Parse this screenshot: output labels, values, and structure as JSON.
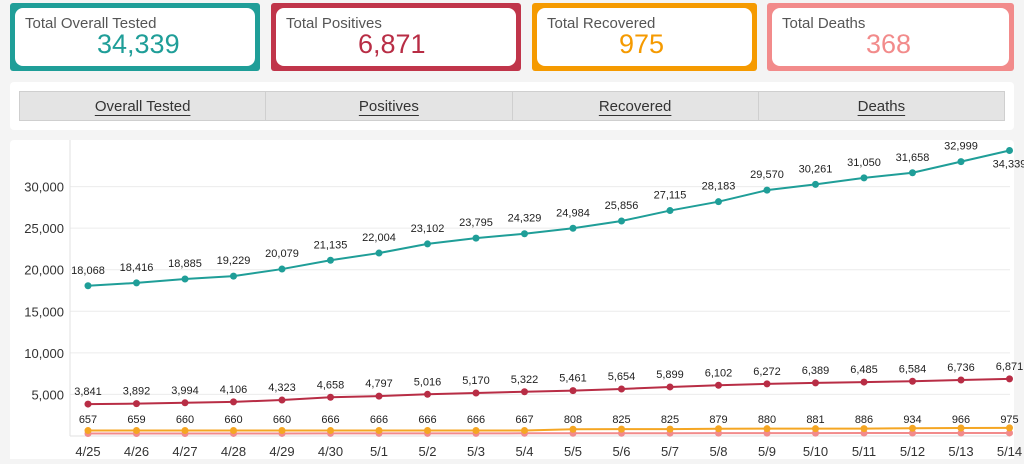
{
  "cards": [
    {
      "label": "Total Overall Tested",
      "value": "34,339",
      "color": "#1f9e98"
    },
    {
      "label": "Total Positives",
      "value": "6,871",
      "color": "#c0354a"
    },
    {
      "label": "Total Recovered",
      "value": "975",
      "color": "#f59a00"
    },
    {
      "label": "Total Deaths",
      "value": "368",
      "color": "#f28b8b"
    }
  ],
  "tabs": [
    "Overall Tested",
    "Positives",
    "Recovered",
    "Deaths"
  ],
  "chart_data": {
    "type": "line",
    "categories": [
      "4/25",
      "4/26",
      "4/27",
      "4/28",
      "4/29",
      "4/30",
      "5/1",
      "5/2",
      "5/3",
      "5/4",
      "5/5",
      "5/6",
      "5/7",
      "5/8",
      "5/9",
      "5/10",
      "5/11",
      "5/12",
      "5/13",
      "5/14"
    ],
    "ylim": [
      0,
      35000
    ],
    "yticks": [
      5000,
      10000,
      15000,
      20000,
      25000,
      30000
    ],
    "ytick_labels": [
      "5,000",
      "10,000",
      "15,000",
      "20,000",
      "25,000",
      "30,000"
    ],
    "grid": true,
    "series": [
      {
        "color": "#1f9e98",
        "values": [
          18068,
          18416,
          18885,
          19229,
          20079,
          21135,
          22004,
          23102,
          23795,
          24329,
          24984,
          25856,
          27115,
          28183,
          29570,
          30261,
          31050,
          31658,
          32999,
          34339
        ],
        "labels": [
          "18,068",
          "18,416",
          "18,885",
          "19,229",
          "20,079",
          "21,135",
          "22,004",
          "23,102",
          "23,795",
          "24,329",
          "24,984",
          "25,856",
          "27,115",
          "28,183",
          "29,570",
          "30,261",
          "31,050",
          "31,658",
          "32,999",
          "34,339"
        ]
      },
      {
        "color": "#b82d45",
        "values": [
          3841,
          3892,
          3994,
          4106,
          4323,
          4658,
          4797,
          5016,
          5170,
          5322,
          5461,
          5654,
          5899,
          6102,
          6272,
          6389,
          6485,
          6584,
          6736,
          6871
        ],
        "labels": [
          "3,841",
          "3,892",
          "3,994",
          "4,106",
          "4,323",
          "4,658",
          "4,797",
          "5,016",
          "5,170",
          "5,322",
          "5,461",
          "5,654",
          "5,899",
          "6,102",
          "6,272",
          "6,389",
          "6,485",
          "6,584",
          "6,736",
          "6,871"
        ]
      },
      {
        "color": "#f5a623",
        "values": [
          657,
          659,
          660,
          660,
          660,
          666,
          666,
          666,
          666,
          667,
          808,
          825,
          825,
          879,
          880,
          881,
          886,
          934,
          966,
          975
        ],
        "labels": [
          "657",
          "659",
          "660",
          "660",
          "660",
          "666",
          "666",
          "666",
          "666",
          "667",
          "808",
          "825",
          "825",
          "879",
          "880",
          "881",
          "886",
          "934",
          "966",
          "975"
        ]
      },
      {
        "color": "#f28b8b",
        "values": [
          300,
          302,
          304,
          306,
          308,
          311,
          314,
          317,
          320,
          324,
          328,
          332,
          336,
          340,
          345,
          350,
          355,
          359,
          364,
          368
        ],
        "labels": []
      }
    ]
  }
}
